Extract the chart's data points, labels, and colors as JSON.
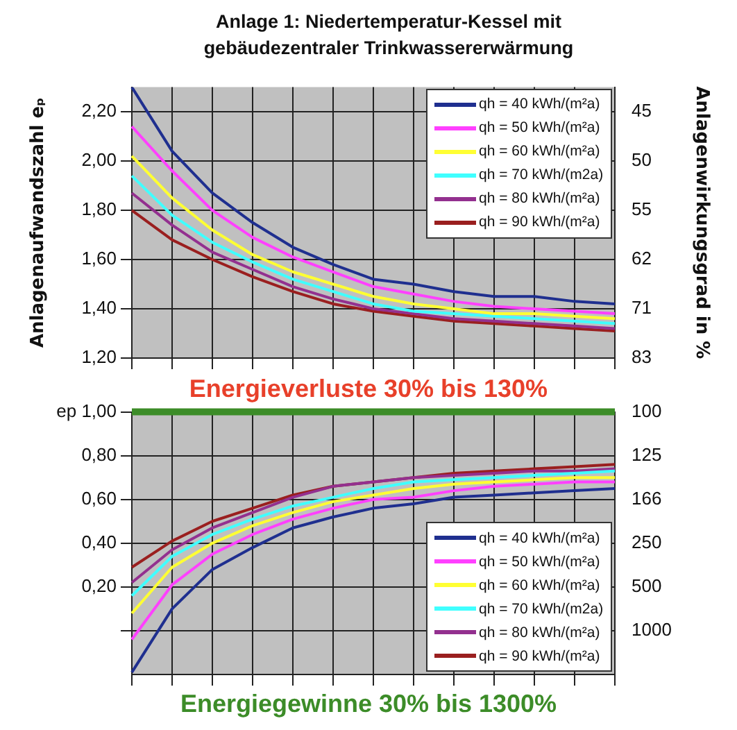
{
  "chart_data": [
    {
      "type": "line",
      "title": "Anlage 1: Niedertemperatur-Kessel mit gebäudezentraler Trinkwassererwärmung",
      "ylabel": "Anlagenaufwandszahl eₚ",
      "y2label": "Anlagenwirkungsgrad in %",
      "categories": [
        null,
        null,
        null,
        null,
        null,
        null,
        null,
        null,
        null,
        null,
        null,
        null,
        null
      ],
      "series": [
        {
          "name": "qh = 40 kWh/(m²a)",
          "color": "#1f2f8f",
          "values": [
            2.3,
            2.04,
            1.87,
            1.75,
            1.65,
            1.58,
            1.52,
            1.5,
            1.47,
            1.45,
            1.45,
            1.43,
            1.42
          ]
        },
        {
          "name": "qh = 50 kWh/(m²a)",
          "color": "#ff40ff",
          "values": [
            2.14,
            1.96,
            1.8,
            1.69,
            1.61,
            1.55,
            1.49,
            1.46,
            1.43,
            1.41,
            1.4,
            1.39,
            1.38
          ]
        },
        {
          "name": "qh = 60 kWh/(m²a)",
          "color": "#ffff33",
          "values": [
            2.02,
            1.85,
            1.72,
            1.62,
            1.55,
            1.5,
            1.45,
            1.42,
            1.4,
            1.38,
            1.38,
            1.37,
            1.36
          ]
        },
        {
          "name": "qh = 70 kWh/(m2a)",
          "color": "#40ffff",
          "values": [
            1.94,
            1.78,
            1.67,
            1.59,
            1.52,
            1.47,
            1.42,
            1.39,
            1.38,
            1.37,
            1.36,
            1.35,
            1.34
          ]
        },
        {
          "name": "qh = 80 kWh/(m²a)",
          "color": "#93308f",
          "values": [
            1.87,
            1.74,
            1.63,
            1.56,
            1.49,
            1.44,
            1.4,
            1.38,
            1.36,
            1.35,
            1.34,
            1.33,
            1.32
          ]
        },
        {
          "name": "qh = 90 kWh/(m²a)",
          "color": "#9a1f1f",
          "values": [
            1.8,
            1.68,
            1.6,
            1.53,
            1.47,
            1.42,
            1.39,
            1.37,
            1.35,
            1.34,
            1.33,
            1.32,
            1.31
          ]
        }
      ],
      "ylim": [
        1.2,
        2.3
      ],
      "yticks": [
        {
          "value": 1.2,
          "label": "1,20"
        },
        {
          "value": 1.4,
          "label": "1,40"
        },
        {
          "value": 1.6,
          "label": "1,60"
        },
        {
          "value": 1.8,
          "label": "1,80"
        },
        {
          "value": 2.0,
          "label": "2,00"
        },
        {
          "value": 2.2,
          "label": "2,20"
        }
      ],
      "tick_labels": "y",
      "grid": true,
      "legend": "top right",
      "marker": "none",
      "line_style": "solid",
      "annotations": [
        "Energieverluste 30% bis 130%",
        "83",
        "71",
        "62",
        "55",
        "50",
        "45"
      ]
    },
    {
      "type": "line",
      "categories": [
        null,
        null,
        null,
        null,
        null,
        null,
        null,
        null,
        null,
        null,
        null,
        null,
        null
      ],
      "series": [
        {
          "name": "qh = 40 kWh/(m²a)",
          "color": "#1f2f8f",
          "values": [
            -0.19,
            0.1,
            0.28,
            0.38,
            0.47,
            0.52,
            0.56,
            0.58,
            0.61,
            0.62,
            0.63,
            0.64,
            0.65
          ]
        },
        {
          "name": "qh = 50 kWh/(m²a)",
          "color": "#ff40ff",
          "values": [
            -0.04,
            0.21,
            0.35,
            0.44,
            0.51,
            0.56,
            0.6,
            0.61,
            0.64,
            0.66,
            0.67,
            0.68,
            0.68
          ]
        },
        {
          "name": "qh = 60 kWh/(m²a)",
          "color": "#ffff33",
          "values": [
            0.08,
            0.29,
            0.4,
            0.48,
            0.54,
            0.59,
            0.62,
            0.65,
            0.67,
            0.68,
            0.69,
            0.7,
            0.7
          ]
        },
        {
          "name": "qh = 70 kWh/(m2a)",
          "color": "#40ffff",
          "values": [
            0.16,
            0.34,
            0.44,
            0.51,
            0.57,
            0.61,
            0.65,
            0.68,
            0.69,
            0.7,
            0.71,
            0.72,
            0.73
          ]
        },
        {
          "name": "qh = 80 kWh/(m²a)",
          "color": "#93308f",
          "values": [
            0.22,
            0.37,
            0.47,
            0.54,
            0.61,
            0.66,
            0.68,
            0.7,
            0.71,
            0.72,
            0.73,
            0.73,
            0.74
          ]
        },
        {
          "name": "qh = 90 kWh/(m²a)",
          "color": "#9a1f1f",
          "values": [
            0.29,
            0.41,
            0.5,
            0.56,
            0.62,
            0.66,
            0.68,
            0.7,
            0.72,
            0.73,
            0.74,
            0.75,
            0.76
          ]
        }
      ],
      "ylim": [
        -0.2,
        1.0
      ],
      "yticks": [
        {
          "value": 0,
          "label": null
        },
        {
          "value": 0.2,
          "label": "0,20"
        },
        {
          "value": 0.4,
          "label": "0,40"
        },
        {
          "value": 0.6,
          "label": "0,60"
        },
        {
          "value": 0.8,
          "label": "0,80"
        },
        {
          "value": 1.0,
          "label": "ep 1,00"
        }
      ],
      "ref_lines": [
        {
          "axis": "y",
          "value": 1.0,
          "label": null,
          "color": "#3c8c28"
        }
      ],
      "tick_labels": "y",
      "grid": true,
      "legend": "bottom right",
      "marker": "none",
      "line_style": "solid",
      "annotations": [
        "Energiegewinne 30% bis 1300%",
        "1000",
        "500",
        "250",
        "166",
        "125",
        "100"
      ]
    }
  ]
}
